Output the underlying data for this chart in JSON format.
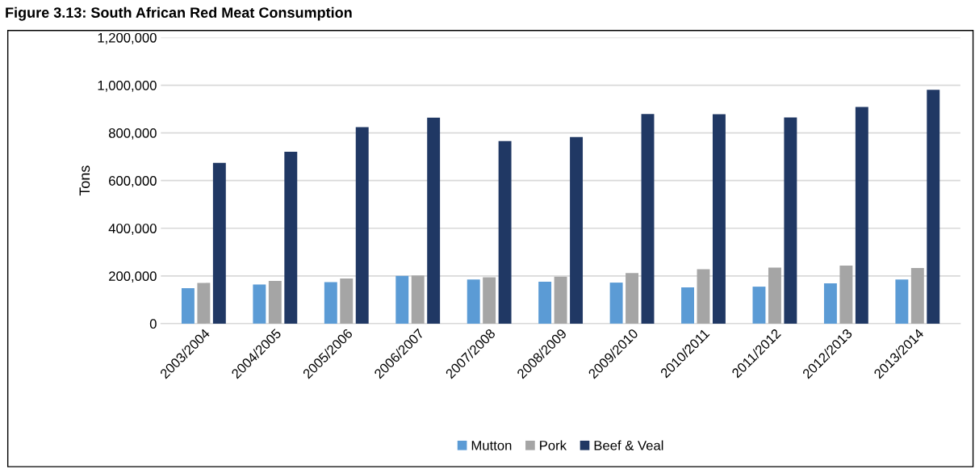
{
  "chart_data": {
    "type": "bar",
    "title": "Figure 3.13: South African Red Meat Consumption",
    "ylabel": "Tons",
    "categories": [
      "2003/2004",
      "2004/2005",
      "2005/2006",
      "2006/2007",
      "2007/2008",
      "2008/2009",
      "2009/2010",
      "2010/2011",
      "2011/2012",
      "2012/2013",
      "2013/2014"
    ],
    "series": [
      {
        "name": "Mutton",
        "color": "#5b9bd5",
        "values": [
          149000,
          164000,
          174000,
          200000,
          185000,
          176000,
          172000,
          152000,
          155000,
          169000,
          185000
        ]
      },
      {
        "name": "Pork",
        "color": "#a5a5a5",
        "values": [
          171000,
          179000,
          189000,
          202000,
          194000,
          197000,
          212000,
          228000,
          235000,
          243000,
          233000
        ]
      },
      {
        "name": "Beef & Veal",
        "color": "#203864",
        "values": [
          674000,
          721000,
          824000,
          864000,
          766000,
          783000,
          879000,
          878000,
          865000,
          909000,
          981000
        ]
      }
    ],
    "ylim": [
      0,
      1200000
    ],
    "yticks": [
      {
        "value": 0,
        "label": "0"
      },
      {
        "value": 200000,
        "label": "200,000"
      },
      {
        "value": 400000,
        "label": "400,000"
      },
      {
        "value": 600000,
        "label": "600,000"
      },
      {
        "value": 800000,
        "label": "800,000"
      },
      {
        "value": 1000000,
        "label": "1,000,000"
      },
      {
        "value": 1200000,
        "label": "1,200,000"
      }
    ],
    "grid": "y",
    "legend": "bottom"
  }
}
